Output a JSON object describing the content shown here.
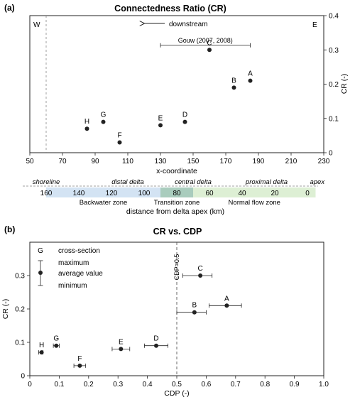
{
  "chart_data": [
    {
      "panel": "(a)",
      "type": "scatter",
      "title": "Connectedness Ratio (CR)",
      "xlabel": "x-coordinate",
      "ylabel": "CR (-)",
      "xlim": [
        50,
        230
      ],
      "ylim": [
        0,
        0.4
      ],
      "xticks": [
        50,
        70,
        90,
        110,
        130,
        150,
        170,
        190,
        210,
        230
      ],
      "yticks": [
        0,
        0.1,
        0.2,
        0.3,
        0.4
      ],
      "ytick_labels": [
        "0",
        "0.1",
        "0.2",
        "0.3",
        "0.4"
      ],
      "corner_west": "W",
      "corner_east": "E",
      "arrow_label": "downstream",
      "shoreline_x": 60,
      "reference_range": {
        "label": "Gouw (2007, 2008)",
        "x": [
          130,
          185
        ],
        "y": 0.33
      },
      "points": [
        {
          "label": "A",
          "x": 185,
          "y": 0.21
        },
        {
          "label": "B",
          "x": 175,
          "y": 0.19
        },
        {
          "label": "C",
          "x": 160,
          "y": 0.3
        },
        {
          "label": "D",
          "x": 145,
          "y": 0.09
        },
        {
          "label": "E",
          "x": 130,
          "y": 0.08
        },
        {
          "label": "F",
          "x": 105,
          "y": 0.03
        },
        {
          "label": "G",
          "x": 95,
          "y": 0.09
        },
        {
          "label": "H",
          "x": 85,
          "y": 0.07
        }
      ],
      "secondary_axis": {
        "xlabel": "distance from delta apex (km)",
        "region_labels": [
          {
            "text": "shoreline",
            "x": 60
          },
          {
            "text": "distal delta",
            "x": 110
          },
          {
            "text": "central delta",
            "x": 150
          },
          {
            "text": "proximal delta",
            "x": 195
          },
          {
            "text": "apex",
            "x": 226
          }
        ],
        "ticks": [
          {
            "label": "160",
            "x": 60
          },
          {
            "label": "140",
            "x": 80
          },
          {
            "label": "120",
            "x": 100
          },
          {
            "label": "100",
            "x": 120
          },
          {
            "label": "80",
            "x": 140
          },
          {
            "label": "60",
            "x": 160
          },
          {
            "label": "40",
            "x": 180
          },
          {
            "label": "20",
            "x": 200
          },
          {
            "label": "0",
            "x": 220
          }
        ],
        "zones": [
          {
            "name": "Backwater zone",
            "x": [
              60,
              130
            ],
            "color": "#d3e3f3"
          },
          {
            "name": "Transition zone",
            "x": [
              130,
              150
            ],
            "color": "#a9ccbd"
          },
          {
            "name": "Normal flow zone",
            "x": [
              150,
              225
            ],
            "color": "#ddefd4"
          }
        ]
      }
    },
    {
      "panel": "(b)",
      "type": "scatter",
      "title": "CR vs. CDP",
      "xlabel": "CDP (-)",
      "ylabel": "CR (-)",
      "xlim": [
        0,
        1
      ],
      "ylim": [
        0,
        0.4
      ],
      "xticks": [
        0,
        0.1,
        0.2,
        0.3,
        0.4,
        0.5,
        0.6,
        0.7,
        0.8,
        0.9,
        1.0
      ],
      "xtick_labels": [
        "0",
        "0.1",
        "0.2",
        "0.3",
        "0.4",
        "0.5",
        "0.6",
        "0.7",
        "0.8",
        "0.9",
        "1.0"
      ],
      "yticks": [
        0,
        0.1,
        0.2,
        0.3
      ],
      "ytick_labels": [
        "0",
        "0.1",
        "0.2",
        "0.3"
      ],
      "threshold_x": 0.5,
      "threshold_label": "CDP=0.5",
      "legend": {
        "items": [
          {
            "symbol": "G",
            "text": "cross-section"
          },
          {
            "symbol": "whisker-top",
            "text": "maximum"
          },
          {
            "symbol": "dot",
            "text": "average value"
          },
          {
            "symbol": "whisker-bottom",
            "text": "minimum"
          }
        ]
      },
      "points": [
        {
          "label": "A",
          "x": 0.67,
          "xmin": 0.61,
          "xmax": 0.72,
          "y": 0.21
        },
        {
          "label": "B",
          "x": 0.56,
          "xmin": 0.5,
          "xmax": 0.6,
          "y": 0.19
        },
        {
          "label": "C",
          "x": 0.58,
          "xmin": 0.52,
          "xmax": 0.62,
          "y": 0.3
        },
        {
          "label": "D",
          "x": 0.43,
          "xmin": 0.39,
          "xmax": 0.47,
          "y": 0.09
        },
        {
          "label": "E",
          "x": 0.31,
          "xmin": 0.28,
          "xmax": 0.34,
          "y": 0.08
        },
        {
          "label": "F",
          "x": 0.17,
          "xmin": 0.15,
          "xmax": 0.19,
          "y": 0.03
        },
        {
          "label": "G",
          "x": 0.09,
          "xmin": 0.08,
          "xmax": 0.1,
          "y": 0.09
        },
        {
          "label": "H",
          "x": 0.04,
          "xmin": 0.03,
          "xmax": 0.045,
          "y": 0.07
        }
      ]
    }
  ]
}
